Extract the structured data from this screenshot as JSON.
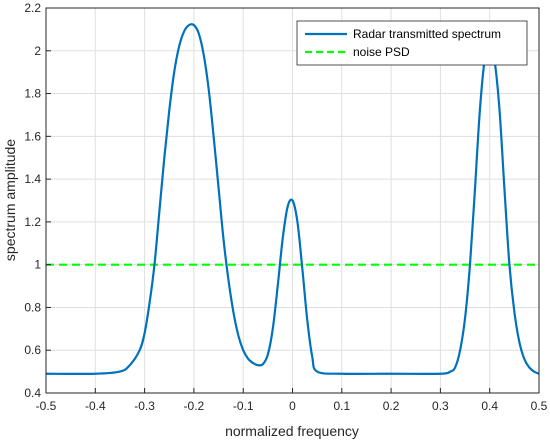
{
  "chart_data": {
    "type": "line",
    "xlabel": "normalized frequency",
    "ylabel": "spectrum amplitude",
    "xlim": [
      -0.5,
      0.5
    ],
    "ylim": [
      0.4,
      2.2
    ],
    "x_ticks": [
      "-0.5",
      "-0.4",
      "-0.3",
      "-0.2",
      "-0.1",
      "0",
      "0.1",
      "0.2",
      "0.3",
      "0.4",
      "0.5"
    ],
    "y_ticks": [
      "0.4",
      "0.6",
      "0.8",
      "1",
      "1.2",
      "1.4",
      "1.6",
      "1.8",
      "2",
      "2.2"
    ],
    "grid": true,
    "legend_position": "top-right",
    "series": [
      {
        "name": "Radar transmitted spectrum",
        "color": "#0072BD",
        "style": "solid",
        "x": [
          -0.5,
          -0.4,
          -0.35,
          -0.33,
          -0.31,
          -0.3,
          -0.29,
          -0.28,
          -0.27,
          -0.26,
          -0.25,
          -0.24,
          -0.23,
          -0.22,
          -0.21,
          -0.2,
          -0.19,
          -0.18,
          -0.17,
          -0.16,
          -0.15,
          -0.14,
          -0.13,
          -0.12,
          -0.11,
          -0.1,
          -0.09,
          -0.08,
          -0.07,
          -0.06,
          -0.05,
          -0.04,
          -0.03,
          -0.02,
          -0.01,
          0.0,
          0.01,
          0.02,
          0.03,
          0.04,
          0.05,
          0.1,
          0.2,
          0.3,
          0.32,
          0.33,
          0.34,
          0.35,
          0.36,
          0.37,
          0.38,
          0.39,
          0.4,
          0.41,
          0.42,
          0.43,
          0.44,
          0.45,
          0.46,
          0.47,
          0.48,
          0.49,
          0.5
        ],
        "y": [
          0.49,
          0.49,
          0.5,
          0.53,
          0.6,
          0.68,
          0.82,
          1.0,
          1.25,
          1.5,
          1.72,
          1.9,
          2.02,
          2.09,
          2.12,
          2.12,
          2.08,
          1.98,
          1.82,
          1.6,
          1.36,
          1.12,
          0.93,
          0.78,
          0.67,
          0.6,
          0.56,
          0.54,
          0.53,
          0.535,
          0.58,
          0.7,
          0.9,
          1.12,
          1.27,
          1.3,
          1.2,
          0.98,
          0.74,
          0.57,
          0.5,
          0.49,
          0.49,
          0.49,
          0.5,
          0.52,
          0.6,
          0.75,
          1.0,
          1.35,
          1.72,
          1.96,
          2.02,
          1.95,
          1.72,
          1.35,
          1.0,
          0.78,
          0.64,
          0.56,
          0.52,
          0.5,
          0.49
        ]
      },
      {
        "name": "noise PSD",
        "color": "#00FF00",
        "style": "dashed",
        "x": [
          -0.5,
          0.5
        ],
        "y": [
          1.0,
          1.0
        ]
      }
    ]
  }
}
